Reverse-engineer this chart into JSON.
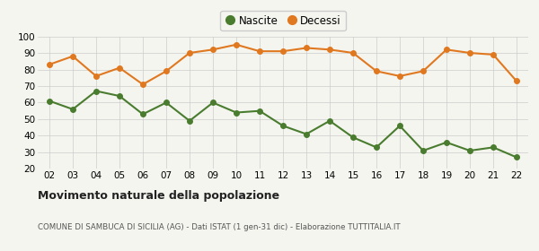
{
  "years": [
    "02",
    "03",
    "04",
    "05",
    "06",
    "07",
    "08",
    "09",
    "10",
    "11",
    "12",
    "13",
    "14",
    "15",
    "16",
    "17",
    "18",
    "19",
    "20",
    "21",
    "22"
  ],
  "nascite": [
    61,
    56,
    67,
    64,
    53,
    60,
    49,
    60,
    54,
    55,
    46,
    41,
    49,
    39,
    33,
    46,
    31,
    36,
    31,
    33,
    27
  ],
  "decessi": [
    83,
    88,
    76,
    81,
    71,
    79,
    90,
    92,
    95,
    91,
    91,
    93,
    92,
    90,
    79,
    76,
    79,
    92,
    90,
    89,
    73
  ],
  "nascite_color": "#4a7c2f",
  "decessi_color": "#e07820",
  "background_color": "#f5f5f0",
  "grid_color": "#cccccc",
  "ylim": [
    20,
    100
  ],
  "yticks": [
    20,
    30,
    40,
    50,
    60,
    70,
    80,
    90,
    100
  ],
  "title": "Movimento naturale della popolazione",
  "subtitle": "COMUNE DI SAMBUCA DI SICILIA (AG) - Dati ISTAT (1 gen-31 dic) - Elaborazione TUTTITALIA.IT",
  "legend_nascite": "Nascite",
  "legend_decessi": "Decessi",
  "marker_size": 4,
  "line_width": 1.5
}
